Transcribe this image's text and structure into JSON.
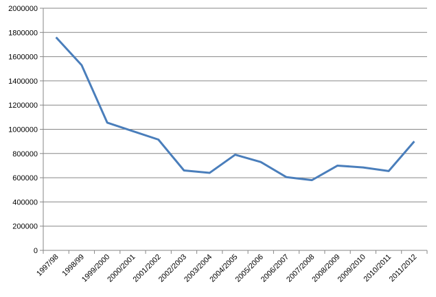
{
  "chart_data": {
    "type": "line",
    "categories": [
      "1997/98",
      "1998/99",
      "1999/2000",
      "2000/2001",
      "2001/2002",
      "2002/2003",
      "2003/2004",
      "2004/2005",
      "2005/2006",
      "2006/2007",
      "2007/2008",
      "2008/2009",
      "2009/2010",
      "2010/2011",
      "2011/2012"
    ],
    "series": [
      {
        "name": null,
        "color": "#4a7ebb",
        "values": [
          1760000,
          1530000,
          1055000,
          985000,
          915000,
          660000,
          640000,
          790000,
          730000,
          605000,
          580000,
          700000,
          685000,
          655000,
          900000
        ]
      }
    ],
    "ylim": [
      0,
      2000000
    ],
    "yticks": [
      0,
      200000,
      400000,
      600000,
      800000,
      1000000,
      1200000,
      1400000,
      1600000,
      1800000,
      2000000
    ],
    "grid": true
  }
}
